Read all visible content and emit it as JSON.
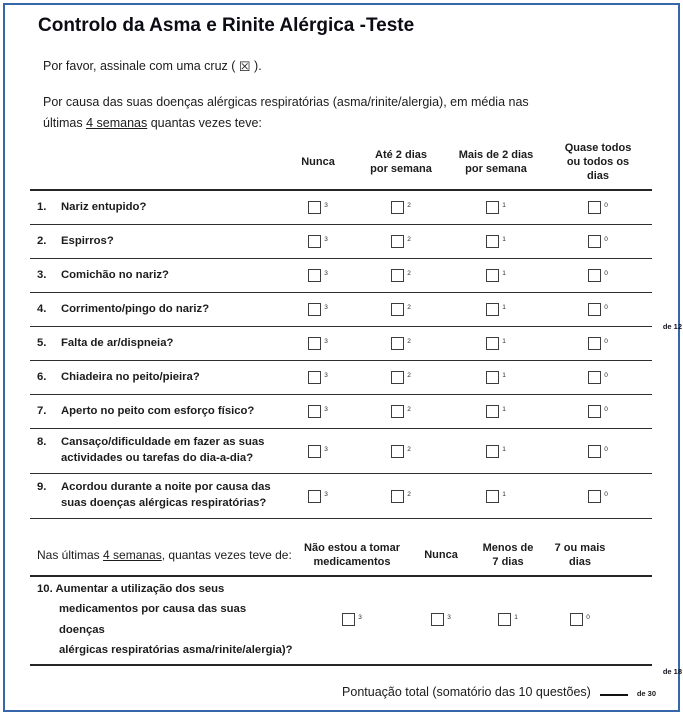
{
  "doc": {
    "title": "Controlo da Asma e Rinite Alérgica -Teste",
    "instruction": {
      "prefix": "Por favor, assinale com uma cruz ( ",
      "symbol": "☒",
      "suffix": " )."
    },
    "intro": {
      "line1": "Por causa das suas doenças alérgicas respiratórias (asma/rinite/alergia), em média nas",
      "line2_prefix": "últimas ",
      "line2_underlined": "4 semanas",
      "line2_suffix": " quantas vezes teve:"
    }
  },
  "table1": {
    "columns": [
      "Nunca",
      "Até 2 dias por semana",
      "Mais de 2 dias por semana",
      "Quase todos ou todos os dias"
    ],
    "scores": [
      "3",
      "2",
      "1",
      "0"
    ],
    "rows": [
      {
        "num": "1.",
        "label": "Nariz entupido?"
      },
      {
        "num": "2.",
        "label": "Espirros?"
      },
      {
        "num": "3.",
        "label": "Comichão no nariz?"
      },
      {
        "num": "4.",
        "label": "Corrimento/pingo do nariz?"
      },
      {
        "num": "5.",
        "label": "Falta de ar/dispneia?"
      },
      {
        "num": "6.",
        "label": "Chiadeira no peito/pieira?"
      },
      {
        "num": "7.",
        "label": "Aperto no peito com esforço físico?"
      },
      {
        "num": "8.",
        "label": "Cansaço/dificuldade em fazer as suas actividades ou tarefas do dia-a-dia?"
      },
      {
        "num": "9.",
        "label": "Acordou durante a noite por causa das suas doenças alérgicas respiratórias?"
      }
    ],
    "subscore": "de 12"
  },
  "table2": {
    "header": {
      "prefix": "Nas últimas ",
      "underlined": "4 semanas",
      "suffix": ", quantas vezes teve de:"
    },
    "columns": [
      "Não estou a tomar medicamentos",
      "Nunca",
      "Menos de 7 dias",
      "7 ou mais dias"
    ],
    "scores": [
      "3",
      "3",
      "1",
      "0"
    ],
    "row": {
      "num": "10.",
      "line1": "Aumentar a utilização dos seus",
      "line2": "medicamentos por causa das suas doenças",
      "line3": "alérgicas respiratórias asma/rinite/alergia)?"
    },
    "subscore": "de 18"
  },
  "footer": {
    "total_label": "Pontuação total (somatório das 10 questões)",
    "total_max": "de 30"
  }
}
